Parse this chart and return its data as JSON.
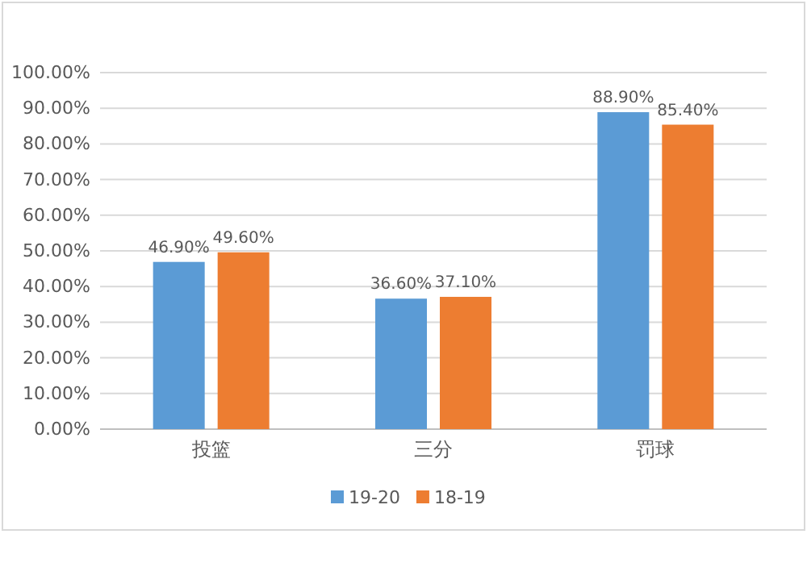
{
  "chart_data": {
    "type": "bar",
    "categories": [
      "投篮",
      "三分",
      "罚球"
    ],
    "series": [
      {
        "name": "19-20",
        "color": "#5b9bd5",
        "values": [
          46.9,
          36.6,
          88.9
        ],
        "value_labels": [
          "46.90%",
          "36.60%",
          "88.90%"
        ]
      },
      {
        "name": "18-19",
        "color": "#ed7d31",
        "values": [
          49.6,
          37.1,
          85.4
        ],
        "value_labels": [
          "49.60%",
          "37.10%",
          "85.40%"
        ]
      }
    ],
    "ylim": [
      0,
      100
    ],
    "yticks": [
      {
        "value": 0,
        "label": "0.00%"
      },
      {
        "value": 10,
        "label": "10.00%"
      },
      {
        "value": 20,
        "label": "20.00%"
      },
      {
        "value": 30,
        "label": "30.00%"
      },
      {
        "value": 40,
        "label": "40.00%"
      },
      {
        "value": 50,
        "label": "50.00%"
      },
      {
        "value": 60,
        "label": "60.00%"
      },
      {
        "value": 70,
        "label": "70.00%"
      },
      {
        "value": 80,
        "label": "80.00%"
      },
      {
        "value": 90,
        "label": "90.00%"
      },
      {
        "value": 100,
        "label": "100.00%"
      }
    ],
    "grid": "y",
    "legend": "bottom"
  }
}
